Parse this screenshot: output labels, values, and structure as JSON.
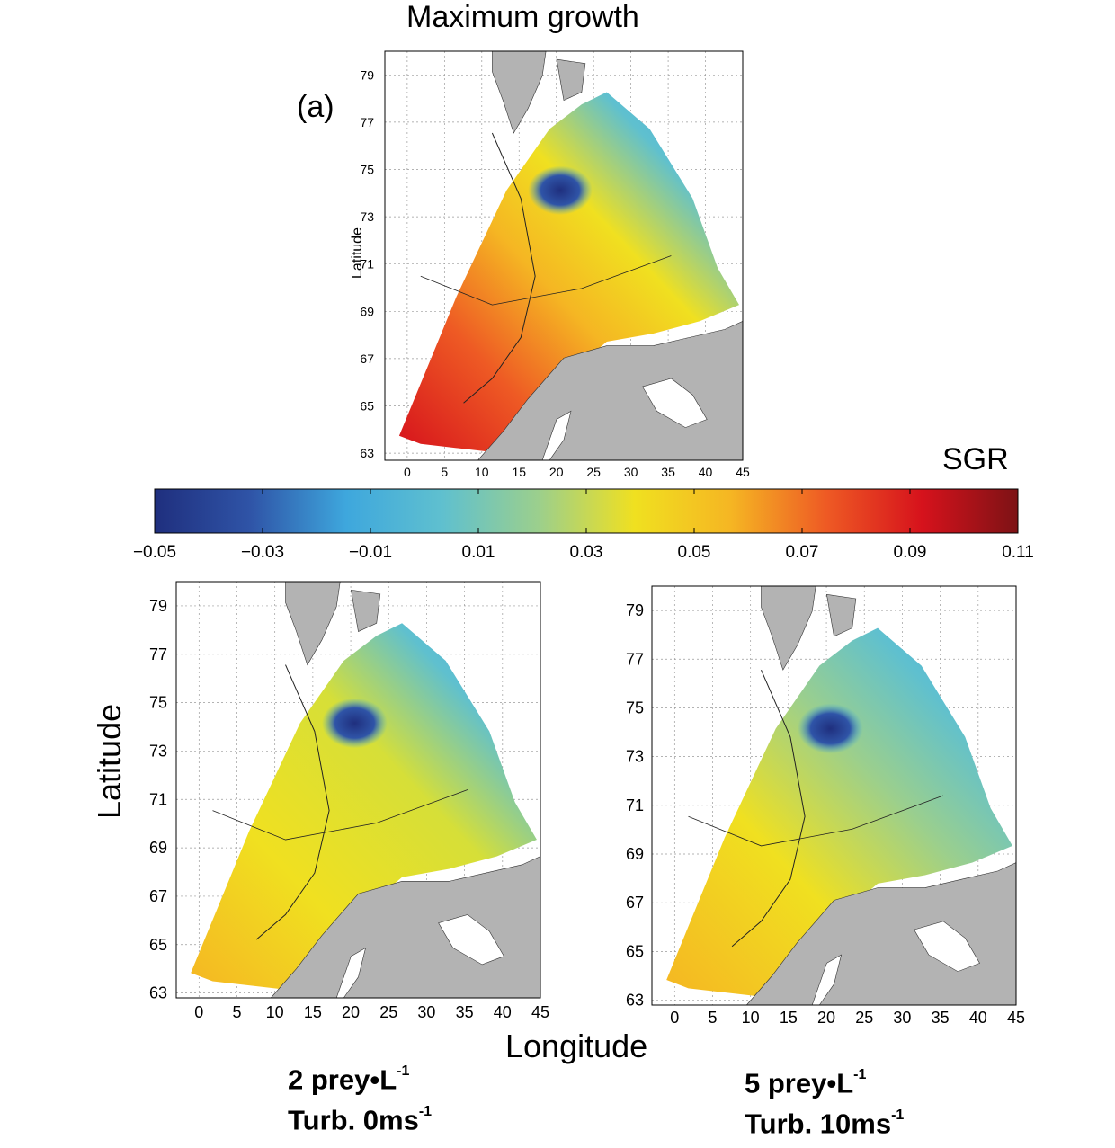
{
  "title": "Maximum growth",
  "panel_label": "(a)",
  "colorbar": {
    "label": "SGR",
    "ticks": [
      "−0.05",
      "−0.03",
      "−0.01",
      "0.01",
      "0.03",
      "0.05",
      "0.07",
      "0.09",
      "0.11"
    ],
    "min": -0.05,
    "max": 0.11,
    "colors": [
      "#1f2f7e",
      "#2f54a7",
      "#3ea7dd",
      "#5fc0cf",
      "#9bcf8d",
      "#f0e020",
      "#f5b623",
      "#ee5a24",
      "#d6121c",
      "#7d1215"
    ]
  },
  "axes": {
    "latitude_label": "Latitude",
    "longitude_label": "Longitude",
    "lat_ticks": [
      "63",
      "65",
      "67",
      "69",
      "71",
      "73",
      "75",
      "77",
      "79"
    ],
    "lon_ticks": [
      "0",
      "5",
      "10",
      "15",
      "20",
      "25",
      "30",
      "35",
      "40",
      "45"
    ]
  },
  "captions": {
    "left": {
      "line1_text": "2 prey•L",
      "line1_sup": "-1",
      "line2_text": "Turb. 0ms",
      "line2_sup": "-1"
    },
    "right": {
      "line1_text": "5 prey•L",
      "line1_sup": "-1",
      "line2_text": "Turb.  10ms",
      "line2_sup": "-1"
    }
  },
  "map_colors": {
    "land": "#b3b3b3",
    "grid": "#9a9a9a"
  }
}
